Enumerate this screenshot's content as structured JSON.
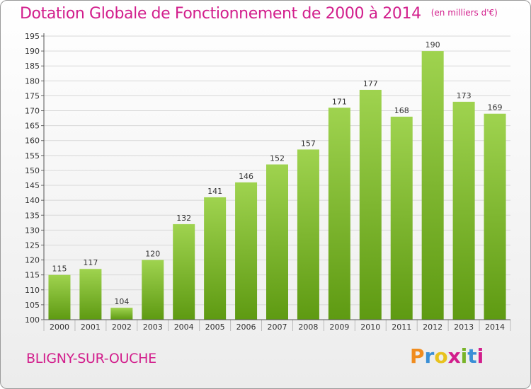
{
  "title": "Dotation Globale de Fonctionnement de 2000 à 2014",
  "unit_note": "(en milliers d'€)",
  "commune": "BLIGNY-SUR-OUCHE",
  "brand": {
    "text": "Proxiti",
    "colors": [
      "#f08c1e",
      "#3a8fd6",
      "#e8c21e",
      "#d21e8c",
      "#78b428",
      "#3a8fd6",
      "#d21e8c"
    ]
  },
  "colors": {
    "title": "#d21e8c",
    "bar_top": "#9fd34f",
    "bar_bottom": "#5e9a12"
  },
  "chart_data": {
    "type": "bar",
    "categories": [
      "2000",
      "2001",
      "2002",
      "2003",
      "2004",
      "2005",
      "2006",
      "2007",
      "2008",
      "2009",
      "2010",
      "2011",
      "2012",
      "2013",
      "2014"
    ],
    "values": [
      115,
      117,
      104,
      120,
      132,
      141,
      146,
      152,
      157,
      171,
      177,
      168,
      190,
      173,
      169
    ],
    "title": "Dotation Globale de Fonctionnement de 2000 à 2014",
    "ylim": [
      100,
      195
    ],
    "yticks": [
      100,
      105,
      110,
      115,
      120,
      125,
      130,
      135,
      140,
      145,
      150,
      155,
      160,
      165,
      170,
      175,
      180,
      185,
      190,
      195
    ],
    "grid": true,
    "legend": "none"
  }
}
